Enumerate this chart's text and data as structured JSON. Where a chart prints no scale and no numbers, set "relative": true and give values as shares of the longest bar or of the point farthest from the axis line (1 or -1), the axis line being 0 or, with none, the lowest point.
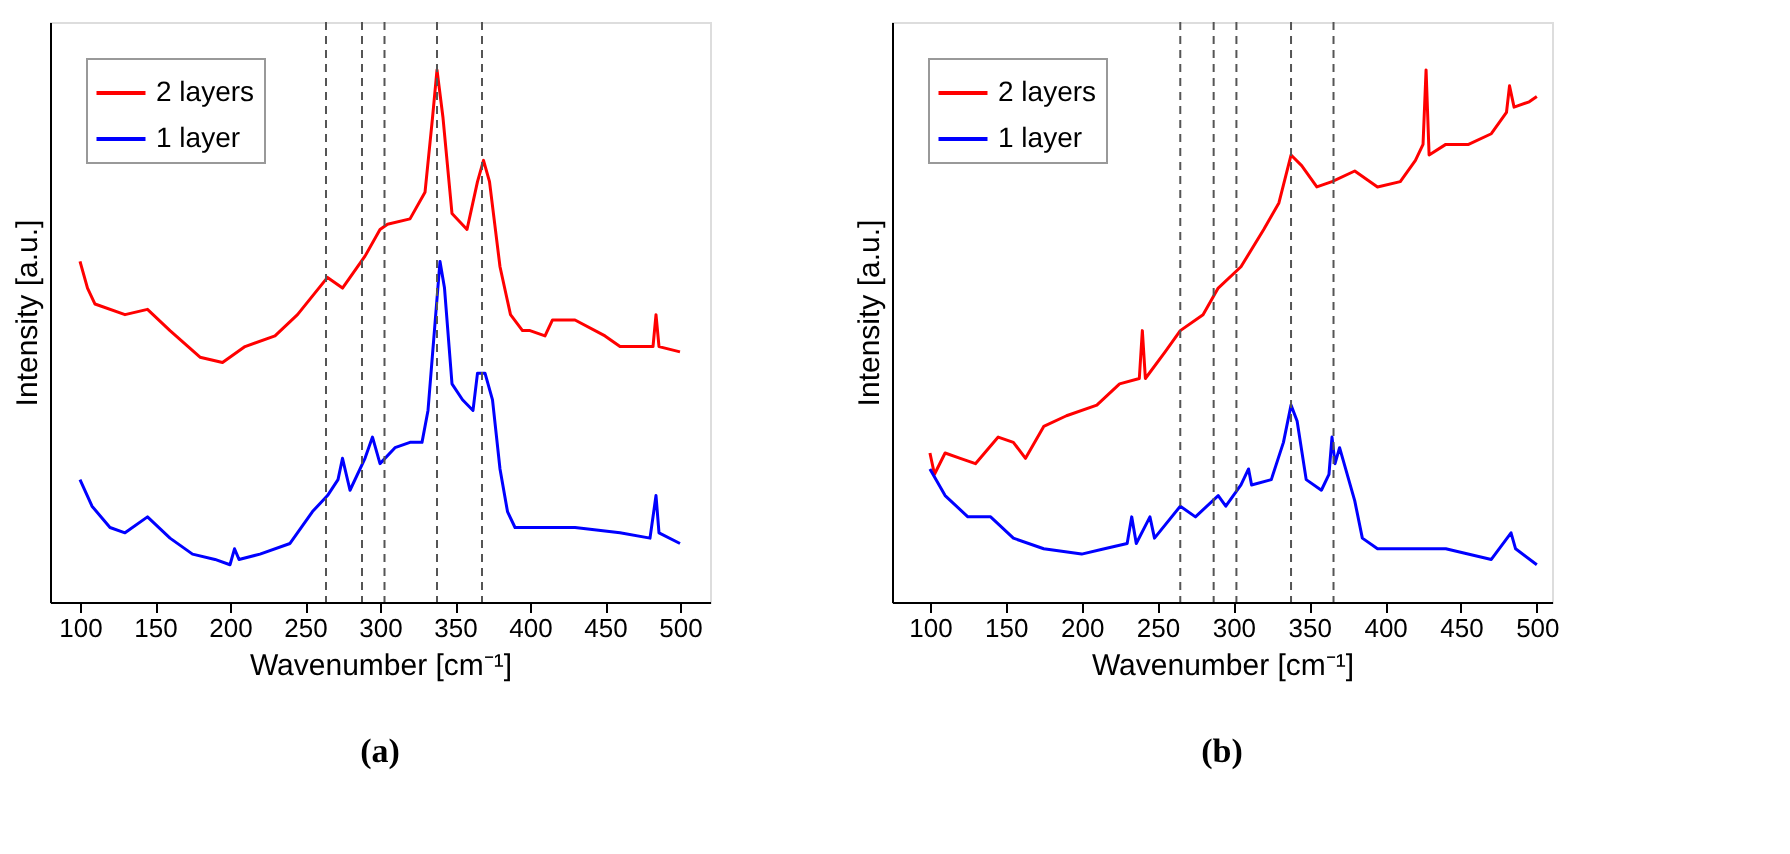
{
  "chart_data": [
    {
      "type": "line",
      "xlabel": "Wavenumber [cm⁻¹]",
      "ylabel": "Intensity [a.u.]",
      "relative": true,
      "xlim": [
        80,
        520
      ],
      "xticks": [
        100,
        150,
        200,
        250,
        300,
        350,
        400,
        450,
        500
      ],
      "legend": "top left",
      "grid": false,
      "line_style": "solid",
      "marker": "none",
      "annotations": [
        "(a)"
      ],
      "ref_lines": [
        {
          "axis": "x",
          "value": 264,
          "color": "#555555",
          "line_style": "dashed"
        },
        {
          "axis": "x",
          "value": 288,
          "color": "#555555",
          "line_style": "dashed"
        },
        {
          "axis": "x",
          "value": 303,
          "color": "#555555",
          "line_style": "dashed"
        },
        {
          "axis": "x",
          "value": 338,
          "color": "#555555",
          "line_style": "dashed"
        },
        {
          "axis": "x",
          "value": 368,
          "color": "#555555",
          "line_style": "dashed"
        }
      ],
      "series": [
        {
          "name": "2 layers",
          "color": "#ff0000",
          "x": [
            100,
            105,
            110,
            130,
            145,
            160,
            180,
            195,
            210,
            230,
            245,
            265,
            275,
            290,
            300,
            305,
            320,
            330,
            335,
            338,
            342,
            348,
            358,
            365,
            369,
            373,
            380,
            387,
            395,
            400,
            410,
            415,
            430,
            450,
            460,
            470,
            482,
            484,
            486,
            500
          ],
          "values": [
            0.64,
            0.59,
            0.56,
            0.54,
            0.55,
            0.51,
            0.46,
            0.45,
            0.48,
            0.5,
            0.54,
            0.61,
            0.59,
            0.65,
            0.7,
            0.71,
            0.72,
            0.77,
            0.91,
            1.0,
            0.91,
            0.73,
            0.7,
            0.79,
            0.83,
            0.79,
            0.63,
            0.54,
            0.51,
            0.51,
            0.5,
            0.53,
            0.53,
            0.5,
            0.48,
            0.48,
            0.48,
            0.54,
            0.48,
            0.47
          ]
        },
        {
          "name": "1 layer",
          "color": "#0000ff",
          "x": [
            100,
            108,
            120,
            130,
            145,
            160,
            175,
            190,
            200,
            203,
            206,
            220,
            240,
            255,
            265,
            272,
            275,
            280,
            290,
            295,
            300,
            310,
            320,
            328,
            332,
            336,
            340,
            343,
            348,
            355,
            362,
            365,
            370,
            375,
            380,
            385,
            390,
            400,
            430,
            460,
            480,
            484,
            486,
            500
          ],
          "values": [
            0.23,
            0.18,
            0.14,
            0.13,
            0.16,
            0.12,
            0.09,
            0.08,
            0.07,
            0.1,
            0.08,
            0.09,
            0.11,
            0.17,
            0.2,
            0.23,
            0.27,
            0.21,
            0.27,
            0.31,
            0.26,
            0.29,
            0.3,
            0.3,
            0.36,
            0.5,
            0.64,
            0.59,
            0.41,
            0.38,
            0.36,
            0.43,
            0.43,
            0.38,
            0.25,
            0.17,
            0.14,
            0.14,
            0.14,
            0.13,
            0.12,
            0.2,
            0.13,
            0.11
          ]
        }
      ]
    },
    {
      "type": "line",
      "xlabel": "Wavenumber [cm⁻¹]",
      "ylabel": "Intensity [a.u.]",
      "relative": true,
      "xlim": [
        75,
        510
      ],
      "xticks": [
        100,
        150,
        200,
        250,
        300,
        350,
        400,
        450,
        500
      ],
      "legend": "top left",
      "grid": false,
      "line_style": "solid",
      "marker": "none",
      "annotations": [
        "(b)"
      ],
      "ref_lines": [
        {
          "axis": "x",
          "value": 265,
          "color": "#555555",
          "line_style": "dashed"
        },
        {
          "axis": "x",
          "value": 287,
          "color": "#555555",
          "line_style": "dashed"
        },
        {
          "axis": "x",
          "value": 302,
          "color": "#555555",
          "line_style": "dashed"
        },
        {
          "axis": "x",
          "value": 338,
          "color": "#555555",
          "line_style": "dashed"
        },
        {
          "axis": "x",
          "value": 366,
          "color": "#555555",
          "line_style": "dashed"
        }
      ],
      "series": [
        {
          "name": "2 layers",
          "color": "#ff0000",
          "x": [
            100,
            103,
            110,
            120,
            130,
            145,
            155,
            163,
            175,
            190,
            210,
            225,
            238,
            240,
            242,
            255,
            265,
            280,
            290,
            305,
            320,
            330,
            338,
            345,
            355,
            365,
            380,
            395,
            410,
            420,
            425,
            427,
            429,
            440,
            455,
            470,
            480,
            482,
            485,
            495,
            500
          ],
          "values": [
            0.28,
            0.24,
            0.28,
            0.27,
            0.26,
            0.31,
            0.3,
            0.27,
            0.33,
            0.35,
            0.37,
            0.41,
            0.42,
            0.51,
            0.42,
            0.47,
            0.51,
            0.54,
            0.59,
            0.63,
            0.7,
            0.75,
            0.84,
            0.82,
            0.78,
            0.79,
            0.81,
            0.78,
            0.79,
            0.83,
            0.86,
            1.0,
            0.84,
            0.86,
            0.86,
            0.88,
            0.92,
            0.97,
            0.93,
            0.94,
            0.95
          ]
        },
        {
          "name": "1 layer",
          "color": "#0000ff",
          "x": [
            100,
            110,
            125,
            140,
            155,
            175,
            200,
            215,
            230,
            233,
            236,
            245,
            248,
            265,
            275,
            290,
            295,
            305,
            310,
            312,
            325,
            333,
            338,
            342,
            348,
            358,
            363,
            365,
            367,
            370,
            380,
            385,
            395,
            420,
            440,
            470,
            483,
            486,
            500
          ],
          "values": [
            0.25,
            0.2,
            0.16,
            0.16,
            0.12,
            0.1,
            0.09,
            0.1,
            0.11,
            0.16,
            0.11,
            0.16,
            0.12,
            0.18,
            0.16,
            0.2,
            0.18,
            0.22,
            0.25,
            0.22,
            0.23,
            0.3,
            0.37,
            0.34,
            0.23,
            0.21,
            0.24,
            0.31,
            0.26,
            0.29,
            0.19,
            0.12,
            0.1,
            0.1,
            0.1,
            0.08,
            0.13,
            0.1,
            0.07
          ]
        }
      ]
    }
  ]
}
